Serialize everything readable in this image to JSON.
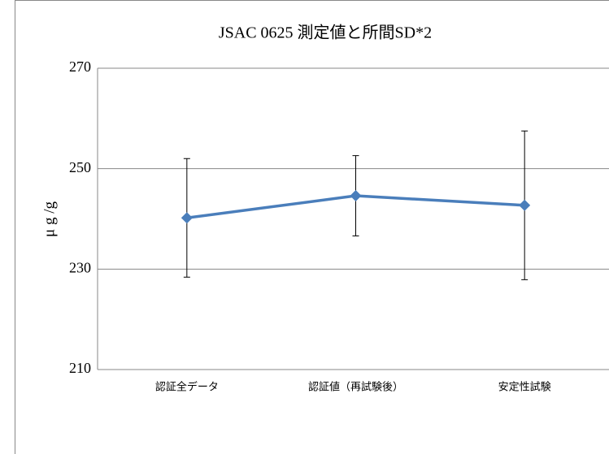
{
  "chart_data": {
    "type": "line",
    "title": "JSAC 0625 測定値と所間SD*2",
    "ylabel": "μ g /g",
    "categories": [
      "認証全データ",
      "認証値（再試験後）",
      "安定性試験"
    ],
    "series": [
      {
        "color": "#4a7ebb",
        "values": [
          240.2,
          244.6,
          242.7
        ],
        "errors": [
          11.8,
          8.0,
          14.8
        ]
      }
    ],
    "ylim": [
      210,
      270
    ],
    "yticks": [
      210,
      230,
      250,
      270
    ],
    "grid": true
  }
}
